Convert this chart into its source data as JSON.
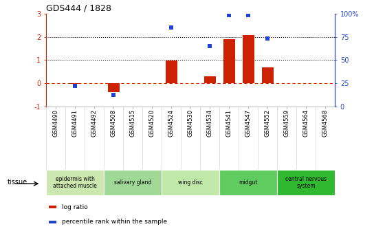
{
  "title": "GDS444 / 1828",
  "samples": [
    "GSM4490",
    "GSM4491",
    "GSM4492",
    "GSM4508",
    "GSM4515",
    "GSM4520",
    "GSM4524",
    "GSM4530",
    "GSM4534",
    "GSM4541",
    "GSM4547",
    "GSM4552",
    "GSM4559",
    "GSM4564",
    "GSM4568"
  ],
  "log_ratio": [
    0.0,
    -0.02,
    0.0,
    -0.38,
    0.0,
    0.0,
    0.97,
    0.0,
    0.31,
    1.9,
    2.07,
    0.68,
    0.0,
    0.0,
    0.0
  ],
  "percentile_pct": [
    null,
    22.0,
    null,
    12.0,
    null,
    null,
    85.0,
    null,
    65.0,
    99.0,
    99.0,
    73.0,
    null,
    null,
    null
  ],
  "tissues": [
    {
      "label": "epidermis with\nattached muscle",
      "start": 0,
      "end": 3,
      "color": "#cce8b0"
    },
    {
      "label": "salivary gland",
      "start": 3,
      "end": 6,
      "color": "#a0d898"
    },
    {
      "label": "wing disc",
      "start": 6,
      "end": 9,
      "color": "#c0e8a8"
    },
    {
      "label": "midgut",
      "start": 9,
      "end": 12,
      "color": "#60cc60"
    },
    {
      "label": "central nervous\nsystem",
      "start": 12,
      "end": 15,
      "color": "#30b830"
    }
  ],
  "bar_color": "#cc2200",
  "dot_color": "#2244cc",
  "ylim_left": [
    -1,
    3
  ],
  "ylim_right": [
    0,
    100
  ],
  "yticks_left": [
    -1,
    0,
    1,
    2,
    3
  ],
  "yticks_right": [
    0,
    25,
    50,
    75,
    100
  ],
  "ytick_labels_right": [
    "0",
    "25",
    "50",
    "75",
    "100%"
  ],
  "hline_y": [
    1,
    2
  ],
  "bg_color": "#ffffff",
  "left_axis_color": "#cc2200",
  "right_axis_color": "#2244cc",
  "legend_items": [
    {
      "color": "#cc2200",
      "label": "log ratio"
    },
    {
      "color": "#2244cc",
      "label": "percentile rank within the sample"
    }
  ]
}
